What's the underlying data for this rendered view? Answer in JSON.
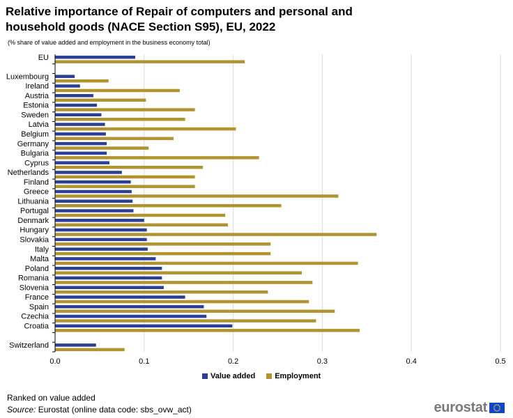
{
  "header": {
    "title": "Relative importance of Repair of computers and personal and household goods (NACE Section S95), EU, 2022",
    "subtitle": "(% share of value added and employment in the business economy total)"
  },
  "footer": {
    "note": "Ranked on value added",
    "source_label": "Source:",
    "source_text": "Eurostat (online data code: sbs_ovw_act)",
    "logo_text": "eurostat"
  },
  "colors": {
    "value_added": "#2b3f95",
    "employment": "#b29332",
    "grid": "#d9d9d9"
  },
  "chart_data": {
    "type": "bar",
    "orientation": "horizontal",
    "title": "Relative importance of Repair of computers and personal and household goods (NACE Section S95), EU, 2022",
    "xlabel": "",
    "ylabel": "",
    "xlim": [
      0,
      0.5
    ],
    "x_ticks": [
      0,
      0.1,
      0.2,
      0.3,
      0.4,
      0.5
    ],
    "x_tick_labels": [
      "0.0",
      "0.1",
      "0.2",
      "0.3",
      "0.4",
      "0.5"
    ],
    "grid": true,
    "legend_position": "bottom",
    "categories": [
      "EU",
      "",
      "Luxembourg",
      "Ireland",
      "Austria",
      "Estonia",
      "Sweden",
      "Latvia",
      "Belgium",
      "Germany",
      "Bulgaria",
      "Cyprus",
      "Netherlands",
      "Finland",
      "Greece",
      "Lithuania",
      "Portugal",
      "Denmark",
      "Hungary",
      "Slovakia",
      "Italy",
      "Malta",
      "Poland",
      "Romania",
      "Slovenia",
      "France",
      "Spain",
      "Czechia",
      "Croatia",
      "",
      "Switzerland"
    ],
    "series": [
      {
        "name": "Value added",
        "values": [
          0.09,
          null,
          0.022,
          0.028,
          0.043,
          0.047,
          0.052,
          0.056,
          0.057,
          0.058,
          0.058,
          0.061,
          0.075,
          0.085,
          0.086,
          0.087,
          0.088,
          0.1,
          0.103,
          0.103,
          0.104,
          0.113,
          0.12,
          0.12,
          0.122,
          0.146,
          0.167,
          0.17,
          0.199,
          null,
          0.046
        ]
      },
      {
        "name": "Employment",
        "values": [
          0.213,
          null,
          0.06,
          0.14,
          0.102,
          0.157,
          0.146,
          0.203,
          0.133,
          0.105,
          0.229,
          0.166,
          0.157,
          0.157,
          0.318,
          0.254,
          0.191,
          0.194,
          0.361,
          0.242,
          0.242,
          0.34,
          0.277,
          0.289,
          0.239,
          0.285,
          0.314,
          0.293,
          0.342,
          null,
          0.078
        ]
      }
    ]
  }
}
